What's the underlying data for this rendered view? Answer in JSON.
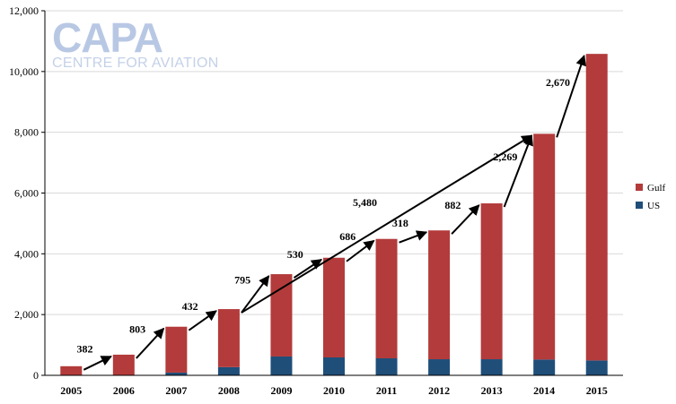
{
  "logo": {
    "name": "CAPA",
    "tagline": "CENTRE FOR AVIATION"
  },
  "chart_data": {
    "type": "bar",
    "stacked": true,
    "categories": [
      "2005",
      "2006",
      "2007",
      "2008",
      "2009",
      "2010",
      "2011",
      "2012",
      "2013",
      "2014",
      "2015"
    ],
    "series": [
      {
        "name": "US",
        "color": "#1f4e79",
        "values": [
          0,
          0,
          90,
          270,
          620,
          590,
          560,
          530,
          530,
          520,
          490
        ]
      },
      {
        "name": "Gulf",
        "color": "#b33b3b",
        "values": [
          300,
          680,
          1510,
          1910,
          2710,
          3280,
          3930,
          4240,
          5130,
          7430,
          10090
        ]
      }
    ],
    "ylim": [
      0,
      12000
    ],
    "yticks": [
      "0",
      "2,000",
      "4,000",
      "6,000",
      "8,000",
      "10,000",
      "12,000"
    ],
    "grid": true,
    "legend_position": "right",
    "annotations": [
      {
        "label": "382",
        "from_category": "2005",
        "to_category": "2006"
      },
      {
        "label": "803",
        "from_category": "2006",
        "to_category": "2007"
      },
      {
        "label": "432",
        "from_category": "2007",
        "to_category": "2008"
      },
      {
        "label": "795",
        "from_category": "2008",
        "to_category": "2009"
      },
      {
        "label": "530",
        "from_category": "2009",
        "to_category": "2010"
      },
      {
        "label": "686",
        "from_category": "2010",
        "to_category": "2011"
      },
      {
        "label": "318",
        "from_category": "2011",
        "to_category": "2012"
      },
      {
        "label": "882",
        "from_category": "2012",
        "to_category": "2013"
      },
      {
        "label": "2,269",
        "from_category": "2013",
        "to_category": "2014"
      },
      {
        "label": "2,670",
        "from_category": "2014",
        "to_category": "2015"
      },
      {
        "label": "5,480",
        "from_category": "2008",
        "to_category": "2014"
      }
    ]
  }
}
